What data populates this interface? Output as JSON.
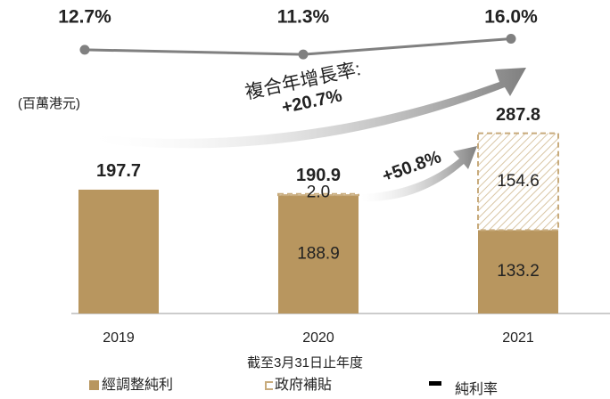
{
  "chart_data": {
    "type": "bar",
    "categories": [
      "2019",
      "2020",
      "2021"
    ],
    "series": [
      {
        "name": "經調整純利",
        "color": "#b8965f",
        "values": [
          197.7,
          188.9,
          133.2
        ]
      },
      {
        "name": "政府補貼",
        "color": "#c8ab7c",
        "values": [
          null,
          2.0,
          154.6
        ],
        "value_labels": [
          null,
          "2.0",
          "154.6"
        ],
        "hatched": true
      },
      {
        "name": "純利率",
        "type": "line",
        "axis": "y2",
        "color": "#808080",
        "values": [
          12.7,
          11.3,
          16.0
        ],
        "value_labels": [
          "12.7%",
          "11.3%",
          "16.0%"
        ]
      }
    ],
    "totals": [
      197.7,
      190.9,
      287.8
    ],
    "ylim": [
      0,
      300
    ],
    "y2lim": [
      10,
      18
    ],
    "y_label": "(百萬港元)",
    "x_label": "截至3月31日止年度",
    "annotations": [
      "複合年增長率:",
      "+20.7%",
      "+50.8%"
    ]
  }
}
